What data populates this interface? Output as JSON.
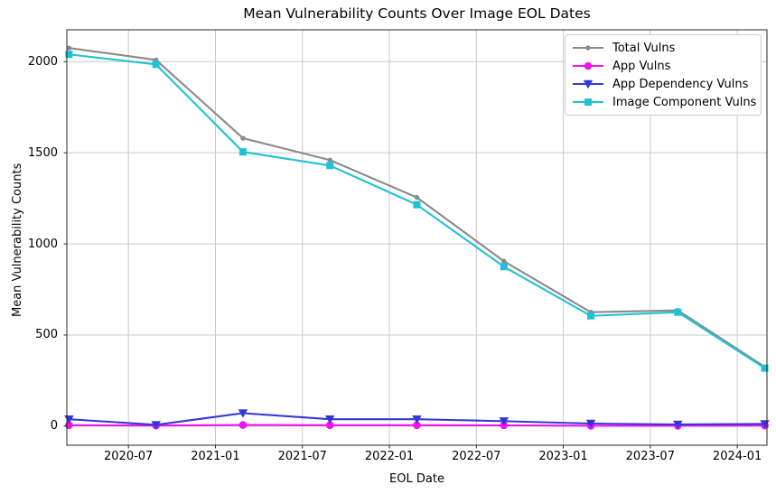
{
  "chart_data": {
    "type": "line",
    "title": "Mean Vulnerability Counts Over Image EOL Dates",
    "xlabel": "EOL Date",
    "ylabel": "Mean Vulnerability Counts",
    "grid": true,
    "legend_position": "upper right",
    "background": "#ffffff",
    "grid_color": "#c9c9c9",
    "spine_color": "#262626",
    "y_ticks": [
      0,
      500,
      1000,
      1500,
      2000
    ],
    "ylim": [
      -105,
      2175
    ],
    "xlim_months": [
      -0.15,
      48.15
    ],
    "x_ticks": [
      {
        "label": "2020-07",
        "m": 4.1
      },
      {
        "label": "2021-01",
        "m": 10.1
      },
      {
        "label": "2021-07",
        "m": 16.1
      },
      {
        "label": "2022-01",
        "m": 22.1
      },
      {
        "label": "2022-07",
        "m": 28.1
      },
      {
        "label": "2023-01",
        "m": 34.1
      },
      {
        "label": "2023-07",
        "m": 40.1
      },
      {
        "label": "2024-01",
        "m": 46.1
      }
    ],
    "x_points_months": [
      0,
      6,
      12,
      18,
      24,
      30,
      36,
      42,
      48
    ],
    "x_dates_estimated": [
      "2020-03",
      "2020-09",
      "2021-03",
      "2021-09",
      "2022-03",
      "2022-09",
      "2023-03",
      "2023-09",
      "2024-03"
    ],
    "series": [
      {
        "name": "Total Vulns",
        "color": "#8a8a8a",
        "marker": "dot",
        "values": [
          2075,
          2010,
          1580,
          1460,
          1255,
          905,
          625,
          635,
          325
        ]
      },
      {
        "name": "App Vulns",
        "color": "#f012f0",
        "marker": "circle",
        "values": [
          5,
          3,
          6,
          5,
          5,
          4,
          2,
          2,
          3
        ]
      },
      {
        "name": "App Dependency Vulns",
        "color": "#3636d8",
        "marker": "triangle-down",
        "values": [
          38,
          7,
          71,
          38,
          38,
          27,
          14,
          9,
          12
        ]
      },
      {
        "name": "Image Component Vulns",
        "color": "#1fc2d5",
        "marker": "square",
        "values": [
          2040,
          1985,
          1505,
          1430,
          1215,
          875,
          605,
          625,
          318
        ]
      }
    ]
  }
}
